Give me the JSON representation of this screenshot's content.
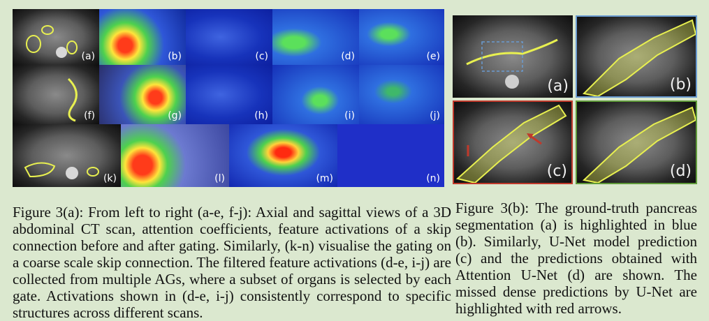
{
  "figure_a": {
    "panel_labels": [
      "(a)",
      "(b)",
      "(c)",
      "(d)",
      "(e)",
      "(f)",
      "(g)",
      "(h)",
      "(i)",
      "(j)",
      "(k)",
      "(l)",
      "(m)",
      "(n)"
    ],
    "caption": "Figure 3(a): From left to right (a-e, f-j): Axial and sagittal views of a 3D abdominal CT scan, attention coefficients, feature activations of a skip connection before and after gating. Similarly, (k-n) visualise the gating on a coarse scale skip connection. The filtered feature activations (d-e, i-j) are collected from multiple AGs, where a subset of organs is selected by each gate. Activations shown in (d-e, i-j) consistently correspond to specific structures across different scans."
  },
  "figure_b": {
    "panel_labels": [
      "(a)",
      "(b)",
      "(c)",
      "(d)"
    ],
    "caption": "Figure 3(b): The ground-truth pancreas segmentation (a) is highlighted in blue (b). Similarly, U-Net model prediction (c) and the predictions obtained with Attention U-Net (d) are shown. The missed dense predictions by U-Net are highlighted with red arrows."
  },
  "colors": {
    "background": "#dbe8cf",
    "frame_blue": "#6a9bd1",
    "frame_red": "#c0392b",
    "frame_green": "#5f9a3a",
    "contour_yellow": "#e8f050"
  }
}
